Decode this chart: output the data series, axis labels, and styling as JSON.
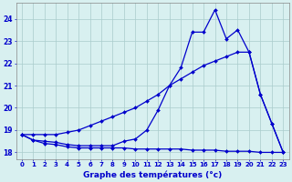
{
  "xlabel": "Graphe des températures (°c)",
  "hours": [
    0,
    1,
    2,
    3,
    4,
    5,
    6,
    7,
    8,
    9,
    10,
    11,
    12,
    13,
    14,
    15,
    16,
    17,
    18,
    19,
    20,
    21,
    22,
    23
  ],
  "line_jagged": [
    18.8,
    18.55,
    18.5,
    18.45,
    18.35,
    18.3,
    18.3,
    18.3,
    18.3,
    18.5,
    18.6,
    19.0,
    19.9,
    21.0,
    21.8,
    23.4,
    23.4,
    24.4,
    23.1,
    23.5,
    22.5,
    20.6,
    19.3,
    18.0
  ],
  "line_gradual": [
    18.8,
    18.8,
    18.8,
    18.8,
    18.9,
    19.0,
    19.2,
    19.4,
    19.6,
    19.8,
    20.0,
    20.3,
    20.6,
    21.0,
    21.3,
    21.6,
    21.9,
    22.1,
    22.3,
    22.5,
    22.5,
    20.6,
    19.3,
    18.0
  ],
  "line_flat": [
    18.8,
    18.55,
    18.4,
    18.35,
    18.25,
    18.2,
    18.2,
    18.2,
    18.2,
    18.2,
    18.15,
    18.15,
    18.15,
    18.15,
    18.15,
    18.1,
    18.1,
    18.1,
    18.05,
    18.05,
    18.05,
    18.0,
    18.0,
    18.0
  ],
  "line_color": "#0000cc",
  "bg_color": "#d8f0f0",
  "grid_color": "#aacccc",
  "ylim": [
    17.7,
    24.7
  ],
  "yticks": [
    18,
    19,
    20,
    21,
    22,
    23,
    24
  ],
  "xticks": [
    0,
    1,
    2,
    3,
    4,
    5,
    6,
    7,
    8,
    9,
    10,
    11,
    12,
    13,
    14,
    15,
    16,
    17,
    18,
    19,
    20,
    21,
    22,
    23
  ]
}
